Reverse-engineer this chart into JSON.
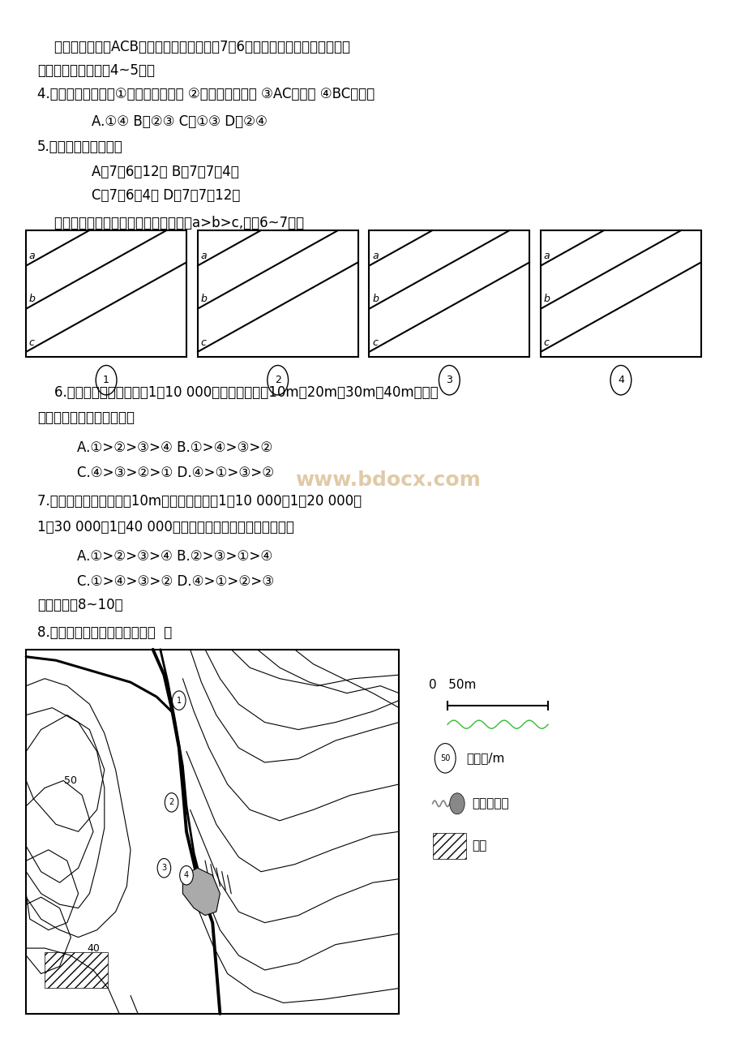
{
  "bg_color": "#ffffff",
  "text_color": "#000000",
  "watermark_color": "#c8a060",
  "watermark_text": "www.bdocx.com",
  "line1": "    右上图中，虚线ACB表示晨昏线，阴影表示7月6日，非阴影部分与阴影部分的",
  "line2": "日期不同，据此回答4~5题。",
  "q4": "4.下列叙述正确的是①该图表示北半球 ②该图表示南半球 ③AC为晨线 ④BC为晨线",
  "q4a": "    A.①④ B．②③ C．①③ D．②④",
  "q5": "5.此时国际标准时间是",
  "q5a": "    A．7月6日12时 B．7月7日4时",
  "q5b": "    C．7月6日4时 D．7月7日12时",
  "intro_contour": "    下图为四幅等高线分布图，等高线数值a>b>c,完成6~7题。",
  "q6a": "    6.若四幅图的比例尺皆为1：10 000，等高距分别是10m、20m、30m、40m，则其",
  "q6b": "坡度由大到小的顺序是（）",
  "q6c": "    A.①>②>③>④ B.①>④>③>②",
  "q6d": "    C.④>③>②>① D.④>①>③>②",
  "q7a": "7.若四幅图的等高距都是10m，比例尺分别为1：10 000、1：20 000、",
  "q7b": "1：30 000、1：40 000，则其坡度由大到小的顺序是（）",
  "q7c": "    A.①>②>③>④ B.②>③>①>④",
  "q7d": "    C.①>④>③>② D.④>①>②>③",
  "read_map": "读下图回答8~10题",
  "q8": "8.图示区域内最大高差可能为（  ）",
  "box_labels": [
    "①",
    "②",
    "③",
    "④"
  ],
  "box_number_labels": [
    "1",
    "2",
    "3",
    "4"
  ],
  "legend_scale": "0   50m",
  "legend_contour_label": "50",
  "legend_items": [
    "等高线/m",
    "河流、池塘",
    "聚落"
  ]
}
